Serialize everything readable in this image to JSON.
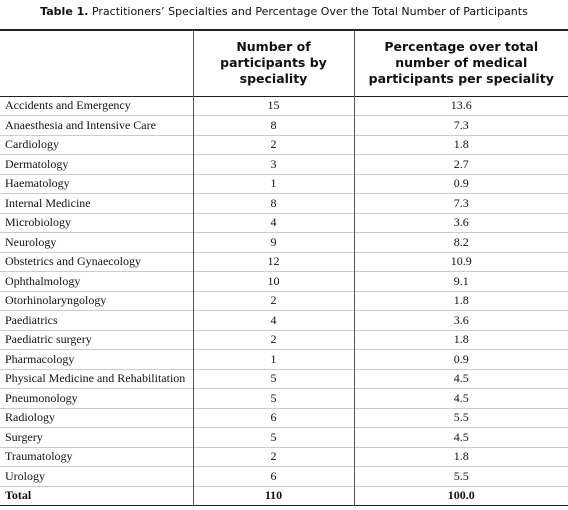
{
  "title": {
    "label": "Table 1.",
    "text": "Practitioners’ Specialties and Percentage Over the Total Number of Participants"
  },
  "table": {
    "header": [
      "Number of participants by speciality",
      "Percentage over total number of medical participants per speciality"
    ],
    "rows": [
      [
        "Accidents and Emergency",
        "15",
        "13.6"
      ],
      [
        "Anaesthesia and Intensive Care",
        "8",
        "7.3"
      ],
      [
        "Cardiology",
        "2",
        "1.8"
      ],
      [
        "Dermatology",
        "3",
        "2.7"
      ],
      [
        "Haematology",
        "1",
        "0.9"
      ],
      [
        "Internal Medicine",
        "8",
        "7.3"
      ],
      [
        "Microbiology",
        "4",
        "3.6"
      ],
      [
        "Neurology",
        "9",
        "8.2"
      ],
      [
        "Obstetrics and Gynaecology",
        "12",
        "10.9"
      ],
      [
        "Ophthalmology",
        "10",
        "9.1"
      ],
      [
        "Otorhinolaryngology",
        "2",
        "1.8"
      ],
      [
        "Paediatrics",
        "4",
        "3.6"
      ],
      [
        "Paediatric surgery",
        "2",
        "1.8"
      ],
      [
        "Pharmacology",
        "1",
        "0.9"
      ],
      [
        "Physical Medicine and Rehabilitation",
        "5",
        "4.5"
      ],
      [
        "Pneumonology",
        "5",
        "4.5"
      ],
      [
        "Radiology",
        "6",
        "5.5"
      ],
      [
        "Surgery",
        "5",
        "4.5"
      ],
      [
        "Traumatology",
        "2",
        "1.8"
      ],
      [
        "Urology",
        "6",
        "5.5"
      ]
    ],
    "total": [
      "Total",
      "110",
      "100.0"
    ]
  }
}
